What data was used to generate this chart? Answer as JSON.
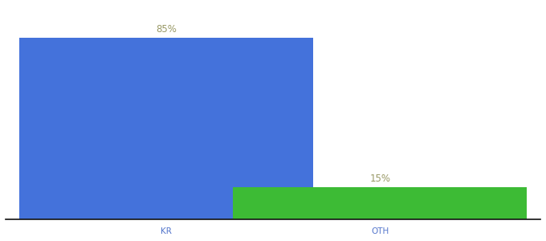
{
  "categories": [
    "KR",
    "OTH"
  ],
  "values": [
    85,
    15
  ],
  "bar_colors": [
    "#4472db",
    "#3dbb35"
  ],
  "label_color": "#999966",
  "label_fontsize": 8.5,
  "xlabel_fontsize": 7.5,
  "xlabel_color": "#5577cc",
  "background_color": "#ffffff",
  "ylim": [
    0,
    100
  ],
  "bar_width": 0.55,
  "x_positions": [
    0.3,
    0.7
  ],
  "xlim": [
    0,
    1.0
  ]
}
